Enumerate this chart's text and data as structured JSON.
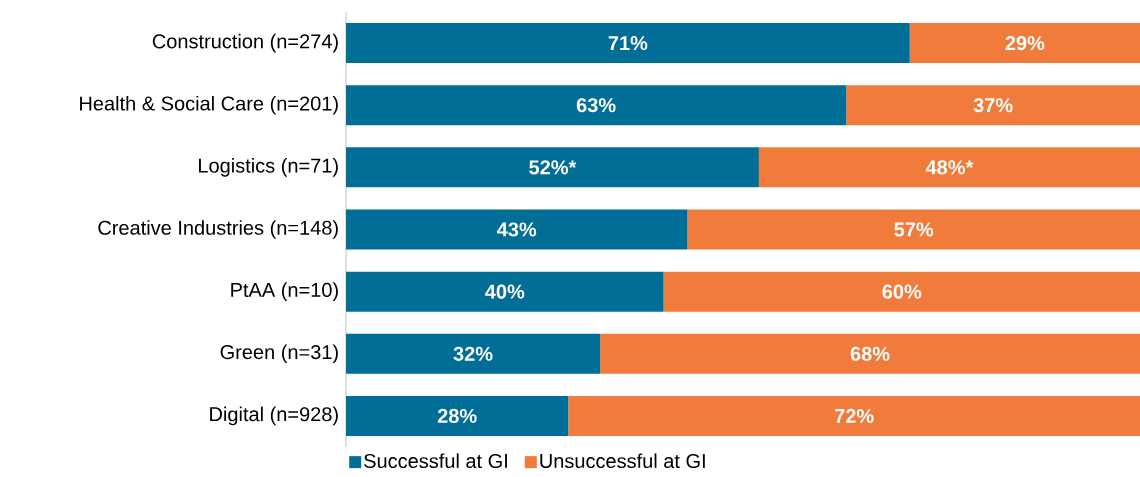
{
  "chart_data": {
    "type": "bar",
    "orientation": "horizontal",
    "stacked": true,
    "categories": [
      "Construction (n=274)",
      "Health & Social Care (n=201)",
      "Logistics (n=71)",
      "Creative Industries (n=148)",
      "PtAA (n=10)",
      "Green (n=31)",
      "Digital (n=928)"
    ],
    "series": [
      {
        "name": "Successful at GI",
        "color": "#006e96",
        "values": [
          71,
          63,
          52,
          43,
          40,
          32,
          28
        ],
        "value_labels": [
          "71%",
          "63%",
          "52%*",
          "43%",
          "40%",
          "32%",
          "28%"
        ]
      },
      {
        "name": "Unsuccessful at GI",
        "color": "#f07b3b",
        "values": [
          29,
          37,
          48,
          57,
          60,
          68,
          72
        ],
        "value_labels": [
          "29%",
          "37%",
          "48%*",
          "57%",
          "60%",
          "68%",
          "72%"
        ]
      }
    ],
    "xlim": [
      0,
      100
    ],
    "tick_labels": "y",
    "legend": "bottom"
  }
}
